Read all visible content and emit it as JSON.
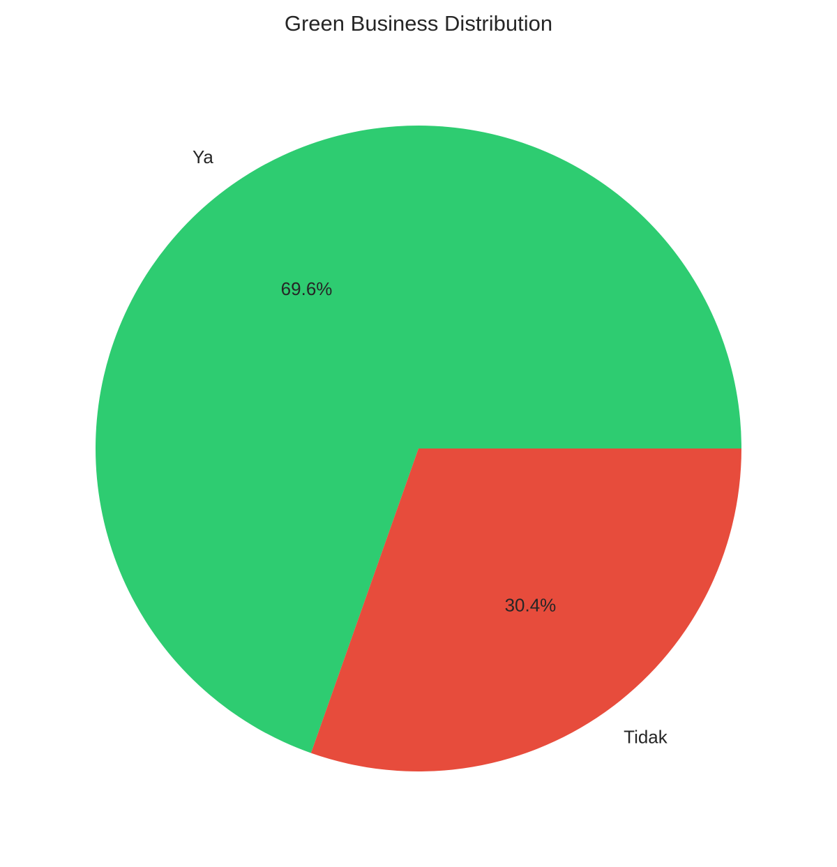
{
  "chart_data": {
    "type": "pie",
    "title": "Green Business Distribution",
    "start_angle_deg": 0,
    "direction": "counterclockwise",
    "slices": [
      {
        "label": "Ya",
        "value": 69.6,
        "pct_label": "69.6%",
        "color": "#2ecc71"
      },
      {
        "label": "Tidak",
        "value": 30.4,
        "pct_label": "30.4%",
        "color": "#e74c3c"
      }
    ]
  }
}
